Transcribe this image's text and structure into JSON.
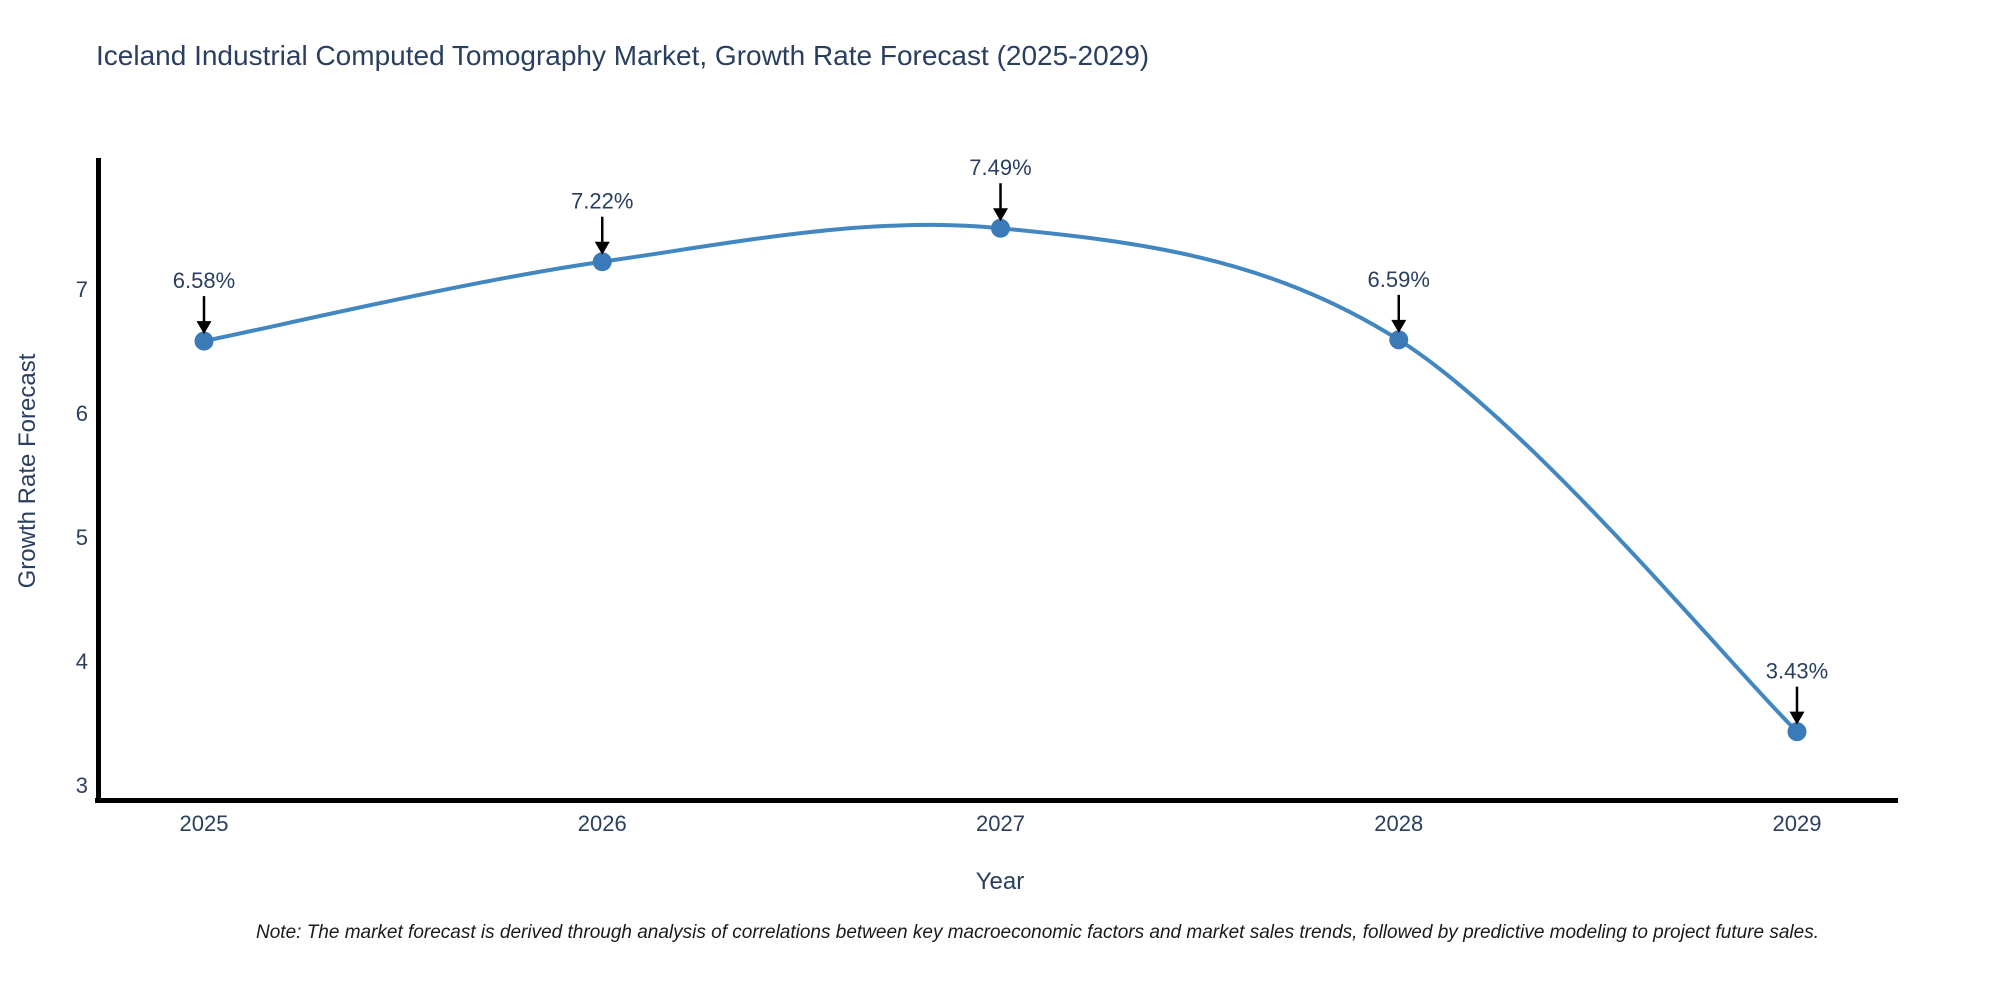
{
  "title": "Iceland Industrial Computed Tomography Market, Growth Rate Forecast (2025-2029)",
  "note": "Note: The market forecast is derived through analysis of correlations between key macroeconomic factors and market sales trends, followed by predictive modeling to project future sales.",
  "chart_data": {
    "type": "line",
    "title": "Iceland Industrial Computed Tomography Market, Growth Rate Forecast (2025-2029)",
    "xlabel": "Year",
    "ylabel": "Growth Rate Forecast",
    "x": [
      2025,
      2026,
      2027,
      2028,
      2029
    ],
    "values": [
      6.58,
      7.22,
      7.49,
      6.59,
      3.43
    ],
    "point_labels": [
      "6.58%",
      "7.22%",
      "7.49%",
      "6.59%",
      "3.43%"
    ],
    "y_ticks": [
      3,
      4,
      5,
      6,
      7
    ],
    "ylim": [
      3,
      8.1
    ],
    "line_shape": "spline",
    "grid": false,
    "legend": "none",
    "colors": {
      "line": "#4387c1",
      "marker": "#3a7ab8",
      "axis_text": "#2a3f5f",
      "annotation_text": "#2a3f5f",
      "annotation_arrow": "#000000",
      "spine": "#000000",
      "background": "#ffffff"
    }
  }
}
